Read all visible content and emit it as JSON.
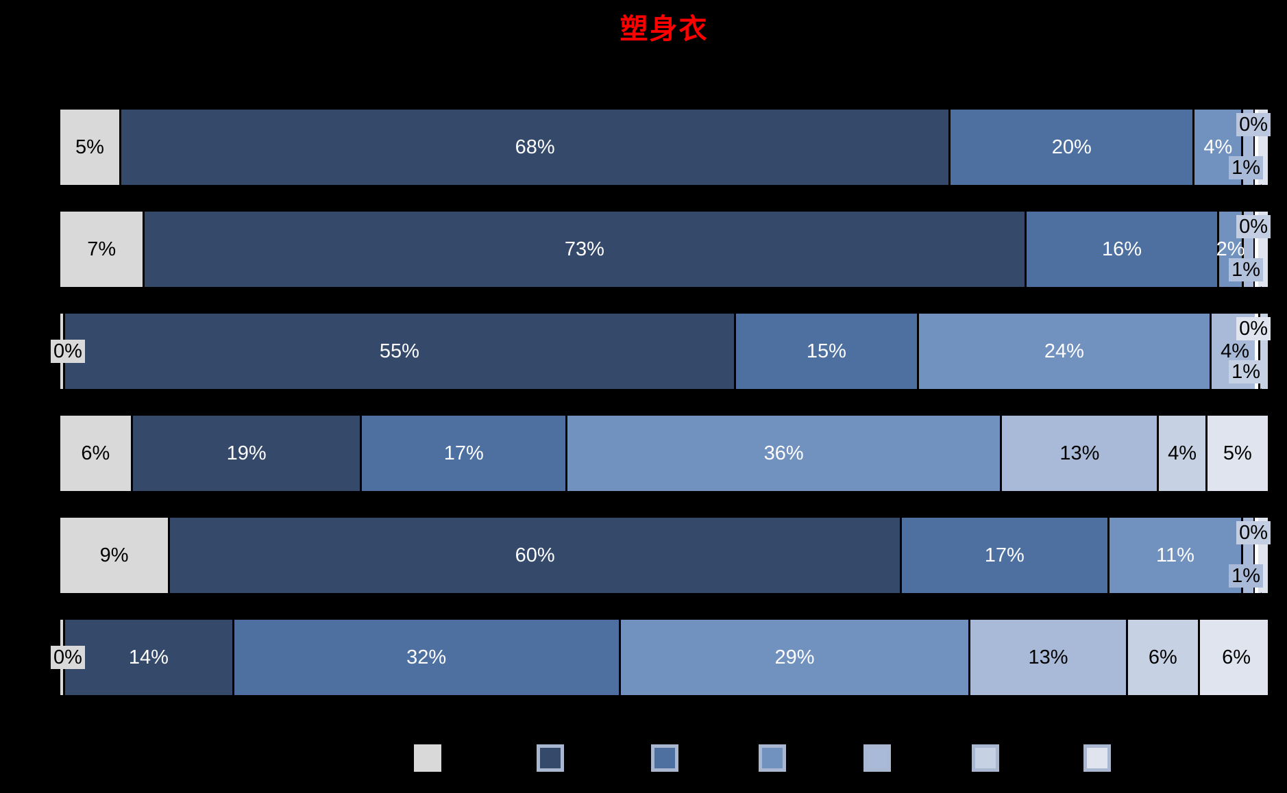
{
  "title": {
    "text": "塑身衣",
    "color": "#FF0000"
  },
  "background": "#000000",
  "chart_data": {
    "type": "bar",
    "variant": "horizontal_100pct_stacked",
    "title": "塑身衣",
    "title_color": "#FF0000",
    "x_axis": {
      "range_pct": [
        0,
        100
      ],
      "gridlines": false,
      "tick_labels_visible": false
    },
    "category_labels_visible": false,
    "series_colors": [
      "#D9D9D9",
      "#35496B",
      "#4D70A0",
      "#7191BE",
      "#A9BAD8",
      "#C6D2E4",
      "#DFE4EE"
    ],
    "series_label_colors": [
      "#000000",
      "#FFFFFF",
      "#FFFFFF",
      "#FFFFFF",
      "#000000",
      "#000000",
      "#000000"
    ],
    "rows": [
      {
        "values": [
          5,
          68,
          20,
          4,
          1,
          0,
          1
        ],
        "labels": [
          "5%",
          "68%",
          "20%",
          "4%",
          "",
          "",
          ""
        ],
        "callouts": [
          {
            "text": "0%",
            "pos": "top-right",
            "bg": "#BAC7DE"
          },
          {
            "text": "1%",
            "pos": "bottom-right",
            "bg": "#A9BAD8"
          }
        ]
      },
      {
        "values": [
          7,
          73,
          16,
          2,
          1,
          0,
          1
        ],
        "labels": [
          "7%",
          "73%",
          "16%",
          "2%",
          "",
          "",
          ""
        ],
        "callouts": [
          {
            "text": "0%",
            "pos": "top-right",
            "bg": "#C3CEE2"
          },
          {
            "text": "1%",
            "pos": "bottom-right",
            "bg": "#B3C2DC"
          }
        ]
      },
      {
        "values": [
          0,
          55,
          15,
          24,
          4,
          1,
          0
        ],
        "labels": [
          "",
          "55%",
          "15%",
          "24%",
          "4%",
          "",
          ""
        ],
        "callouts": [
          {
            "text": "0%",
            "pos": "left",
            "bg": "#D9D9D9"
          },
          {
            "text": "0%",
            "pos": "top-right",
            "bg": "#DFE4EE"
          },
          {
            "text": "1%",
            "pos": "bottom-right",
            "bg": "#C6D2E4"
          }
        ]
      },
      {
        "values": [
          6,
          19,
          17,
          36,
          13,
          4,
          5
        ],
        "labels": [
          "6%",
          "19%",
          "17%",
          "36%",
          "13%",
          "4%",
          "5%"
        ],
        "callouts": []
      },
      {
        "values": [
          9,
          60,
          17,
          11,
          1,
          0,
          1
        ],
        "labels": [
          "9%",
          "60%",
          "17%",
          "11%",
          "",
          "",
          ""
        ],
        "callouts": [
          {
            "text": "0%",
            "pos": "top-right",
            "bg": "#C3CEE2"
          },
          {
            "text": "1%",
            "pos": "bottom-right",
            "bg": "#A9BAD8"
          }
        ]
      },
      {
        "values": [
          0,
          14,
          32,
          29,
          13,
          6,
          6
        ],
        "labels": [
          "",
          "14%",
          "32%",
          "29%",
          "13%",
          "6%",
          "6%"
        ],
        "callouts": [
          {
            "text": "0%",
            "pos": "left",
            "bg": "#D9D9D9"
          }
        ]
      }
    ],
    "legend": {
      "position": "bottom",
      "labels_visible": false,
      "swatch_colors": [
        "#D9D9D9",
        "#35496B",
        "#4D70A0",
        "#7191BE",
        "#A9BAD8",
        "#C6D2E4",
        "#DFE4EE"
      ],
      "swatch_border_color": "#A9B7D1"
    }
  }
}
